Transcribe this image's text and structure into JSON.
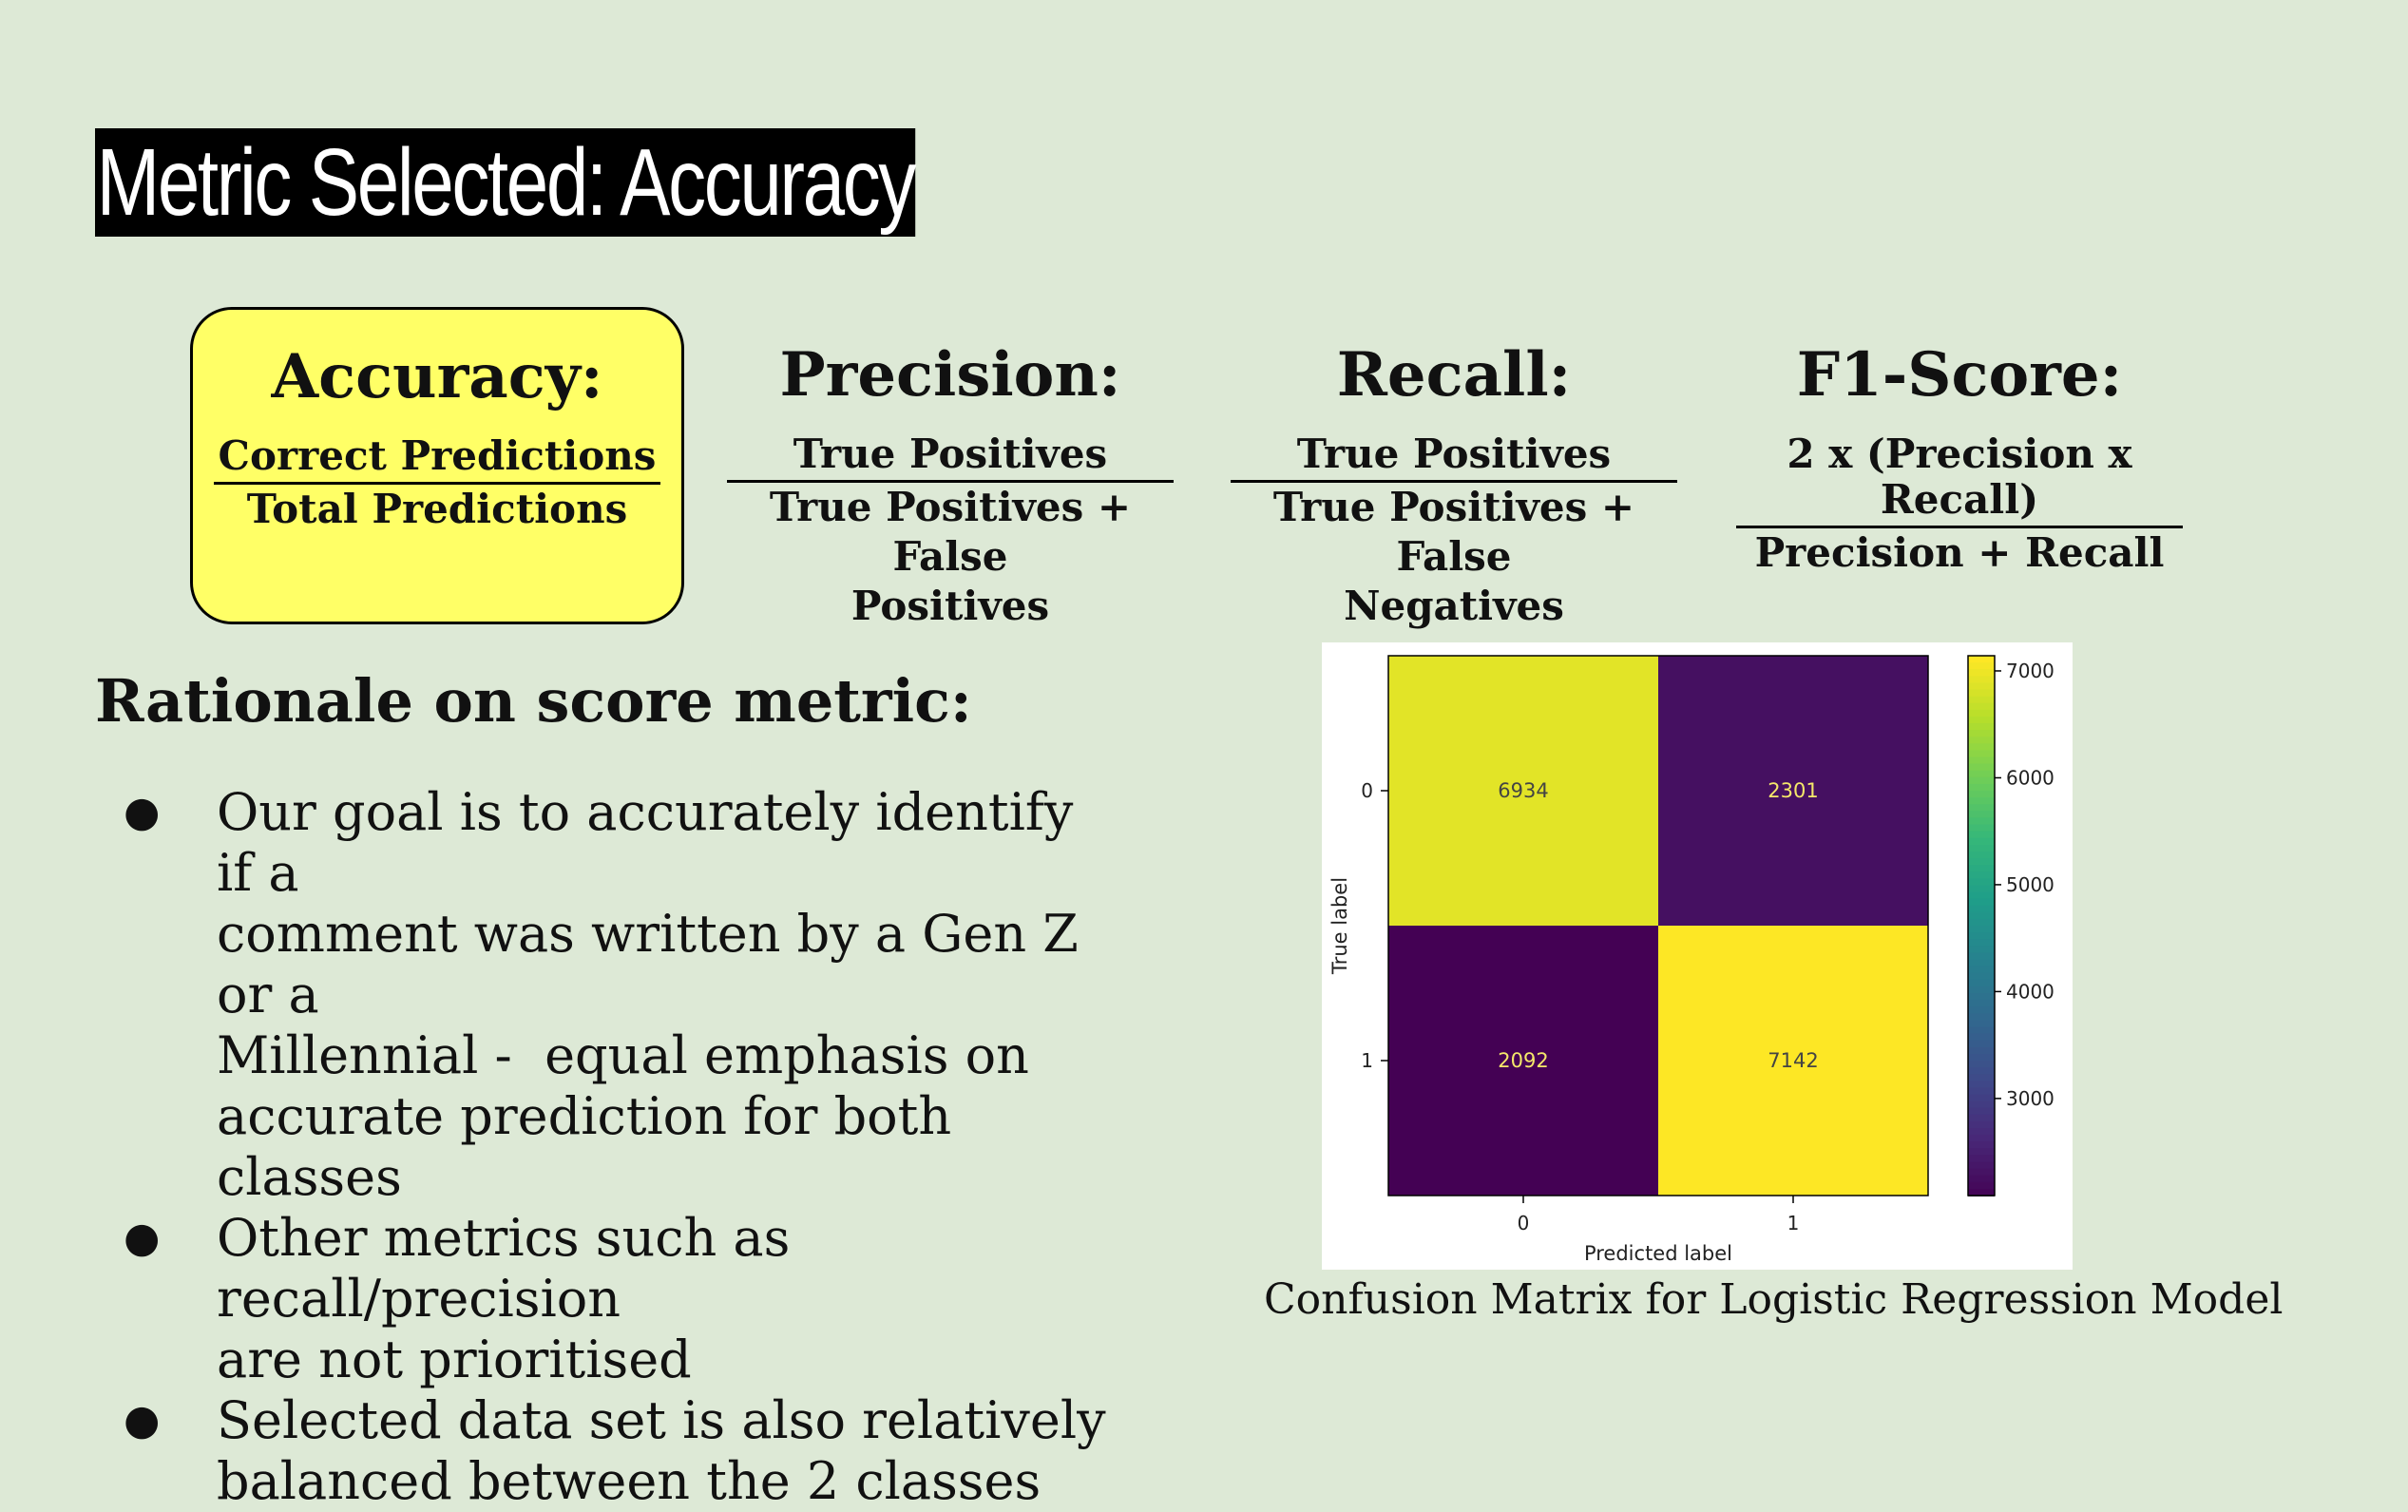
{
  "title": "Metric Selected: Accuracy",
  "metrics": [
    {
      "name": "Accuracy:",
      "numerator": "Correct Predictions",
      "denominator": [
        "Total Predictions"
      ],
      "highlighted": true
    },
    {
      "name": "Precision:",
      "numerator": "True Positives",
      "denominator": [
        "True Positives + False",
        "Positives"
      ],
      "highlighted": false
    },
    {
      "name": "Recall:",
      "numerator": "True Positives",
      "denominator": [
        "True Positives + False",
        "Negatives"
      ],
      "highlighted": false
    },
    {
      "name": "F1-Score:",
      "numerator": "2 x (Precision x Recall)",
      "denominator": [
        "Precision + Recall"
      ],
      "highlighted": false
    }
  ],
  "rationale": {
    "heading": "Rationale on score metric:",
    "bullets": [
      [
        "Our goal is to accurately identify if a",
        "comment was written by a Gen Z or a",
        "Millennial -  equal emphasis on",
        "accurate prediction for both classes"
      ],
      [
        "Other metrics such as recall/precision",
        "are not prioritised"
      ],
      [
        "Selected data set is also relatively",
        "balanced between the 2 classes"
      ]
    ],
    "bullet_symbol": "●"
  },
  "colors": {
    "background": "#dde9d6",
    "highlight": "#ffff66"
  },
  "chart_data": {
    "type": "heatmap",
    "title": "",
    "xlabel": "Predicted label",
    "ylabel": "True label",
    "x_ticks": [
      "0",
      "1"
    ],
    "y_ticks": [
      "0",
      "1"
    ],
    "matrix": [
      [
        6934,
        2301
      ],
      [
        2092,
        7142
      ]
    ],
    "colorscale": "viridis",
    "colorbar_range": [
      2092,
      7142
    ],
    "colorbar_ticks": [
      3000,
      4000,
      5000,
      6000,
      7000
    ]
  },
  "caption": "Confusion Matrix for Logistic Regression Model"
}
